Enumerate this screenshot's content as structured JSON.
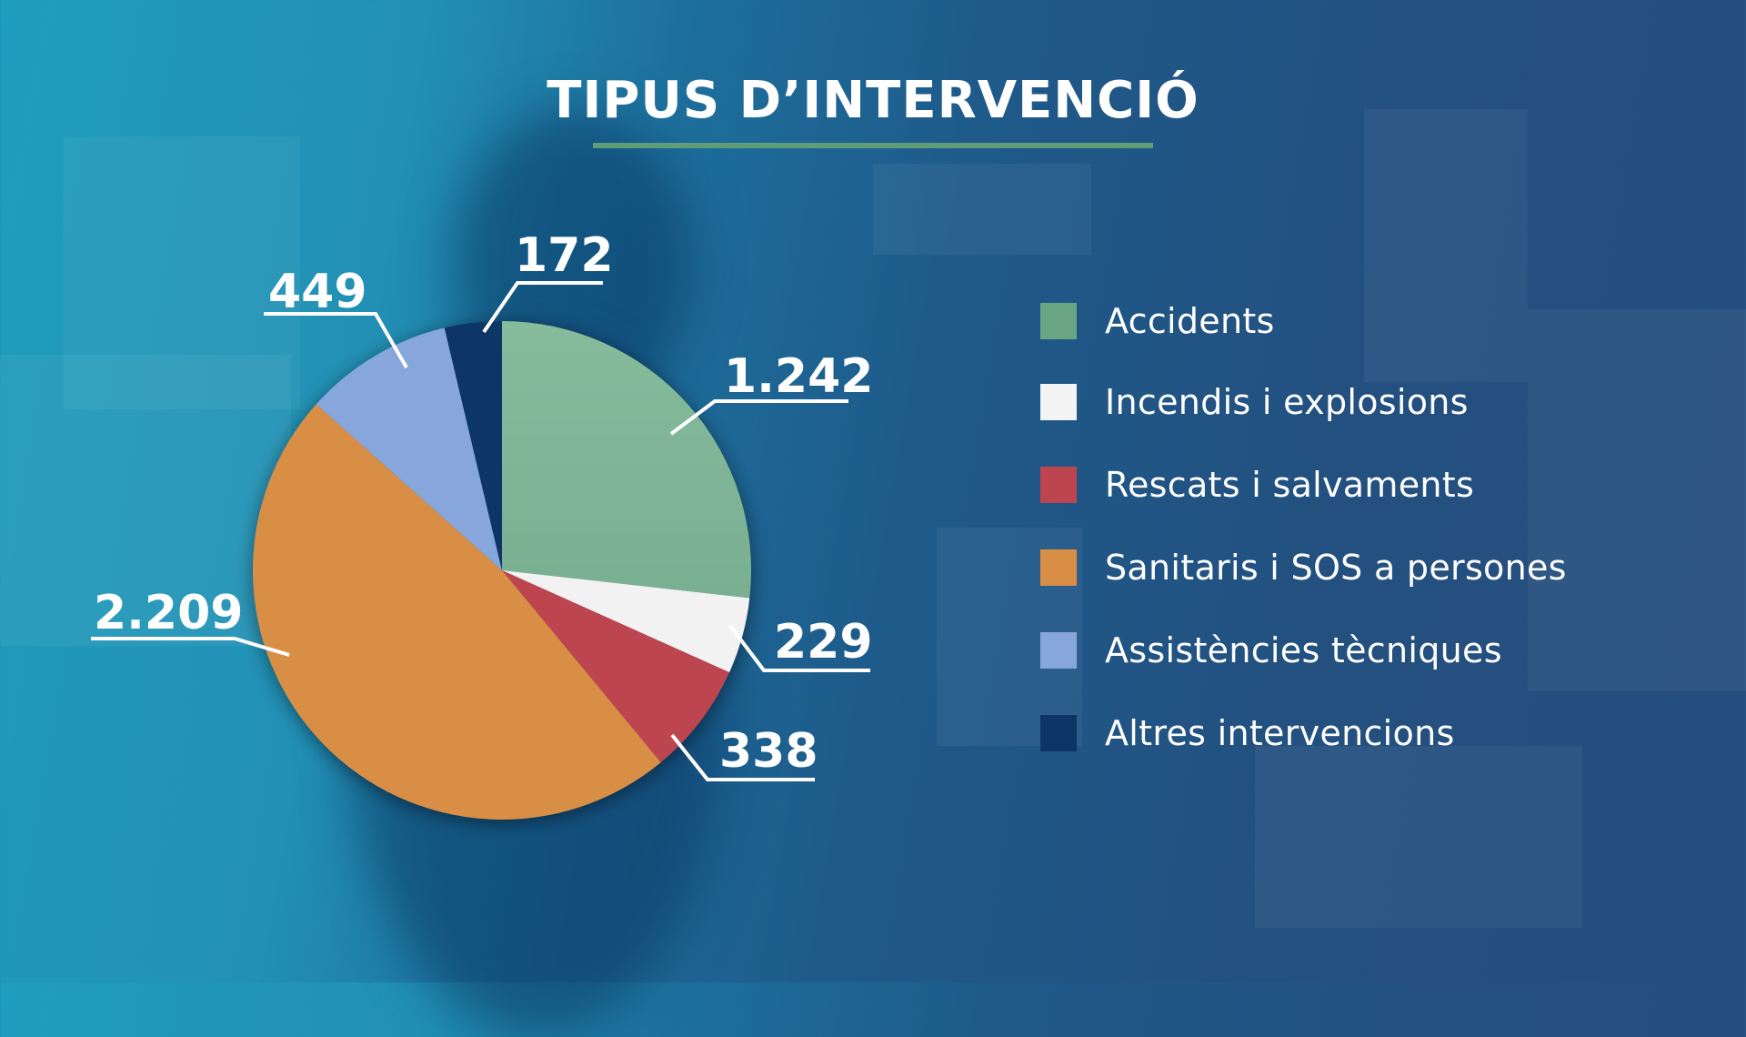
{
  "title": "TIPUS D’INTERVENCIÓ",
  "colors": {
    "title_bar": "#5f9c78",
    "label_text": "#ffffff",
    "leader_line": "#ffffff"
  },
  "legend": [
    {
      "label": "Accidents",
      "color": "#6aa684"
    },
    {
      "label": "Incendis i explosions",
      "color": "#f3f3f3"
    },
    {
      "label": "Rescats i salvaments",
      "color": "#bd4550"
    },
    {
      "label": "Sanitaris i SOS a persones",
      "color": "#d98e45"
    },
    {
      "label": "Assistències tècniques",
      "color": "#87a6dc"
    },
    {
      "label": "Altres intervencions",
      "color": "#0c3566"
    }
  ],
  "data_labels": [
    "1.242",
    "229",
    "338",
    "2.209",
    "449",
    "172"
  ],
  "chart_data": {
    "type": "pie",
    "title": "TIPUS D’INTERVENCIÓ",
    "categories": [
      "Accidents",
      "Incendis i explosions",
      "Rescats i salvaments",
      "Sanitaris i SOS a persones",
      "Assistències tècniques",
      "Altres intervencions"
    ],
    "values": [
      1242,
      229,
      338,
      2209,
      449,
      172
    ],
    "value_labels": [
      "1.242",
      "229",
      "338",
      "2.209",
      "449",
      "172"
    ],
    "colors": [
      "#7fb698",
      "#f2f2f2",
      "#bd4550",
      "#d98e45",
      "#87a6dc",
      "#0c3566"
    ],
    "start_angle": "12 o'clock",
    "direction": "clockwise",
    "legend_position": "right"
  }
}
